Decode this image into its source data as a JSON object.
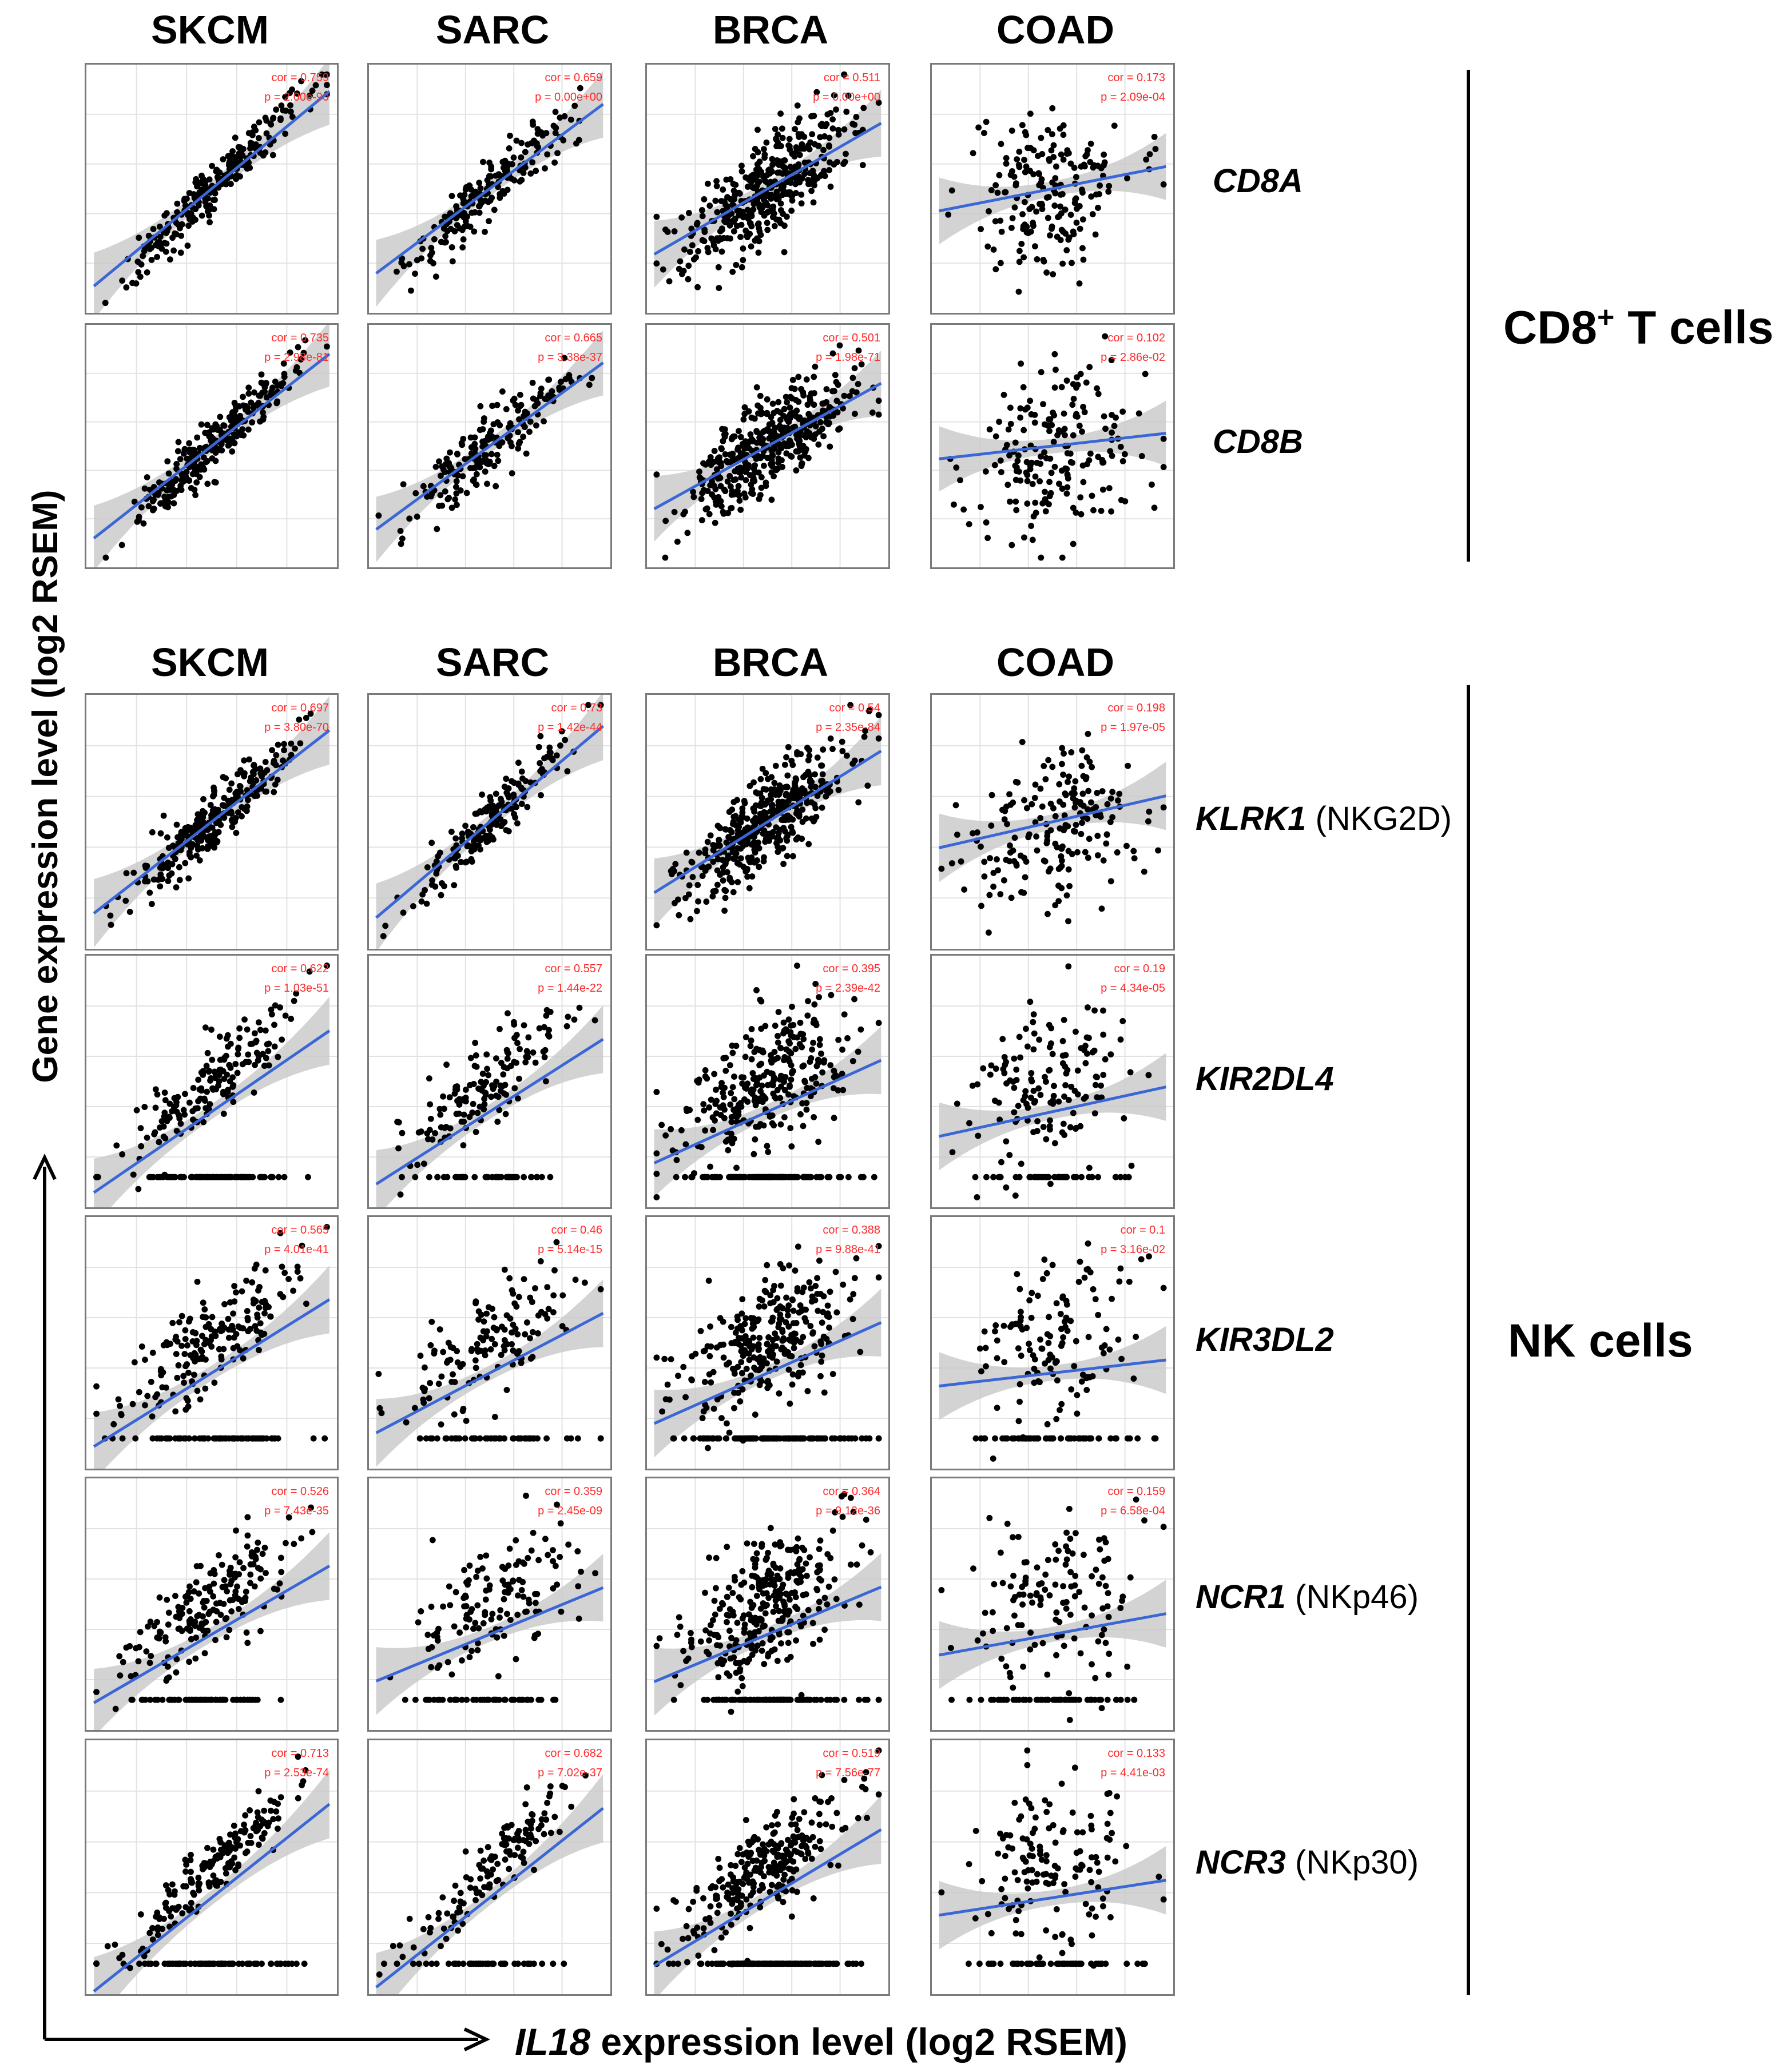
{
  "cancer_types": [
    "SKCM",
    "SARC",
    "BRCA",
    "COAD"
  ],
  "x_axis_label": {
    "gene": "IL18",
    "rest": " expression level (log2 RSEM)"
  },
  "y_axis_label": "Gene expression level (log2 RSEM)",
  "groups": [
    {
      "label_main": "CD8",
      "label_sup": "+",
      "label_rest": " T cells"
    },
    {
      "label": "NK cells"
    }
  ],
  "genes": [
    {
      "symbol": "CD8A",
      "alias": ""
    },
    {
      "symbol": "CD8B",
      "alias": ""
    },
    {
      "symbol": "KLRK1",
      "alias": " (NKG2D)"
    },
    {
      "symbol": "KIR2DL4",
      "alias": ""
    },
    {
      "symbol": "KIR3DL2",
      "alias": ""
    },
    {
      "symbol": "NCR1",
      "alias": " (NKp46)"
    },
    {
      "symbol": "NCR3",
      "alias": " (NKp30)"
    }
  ],
  "colors": {
    "points": "#000000",
    "fit_line": "#3a66d6",
    "ci_band": "#c8c8c8",
    "annotation": "#ff2a2a",
    "panel_border": "#7a7a7a",
    "grid": "#e2e2e2"
  },
  "chart_data": {
    "type": "scatter",
    "fit": "loess with confidence band",
    "correlations": [
      {
        "gene": "CD8A",
        "panels": [
          {
            "cancer": "SKCM",
            "cor": "cor = 0.759",
            "p": "p = 2.00e-90"
          },
          {
            "cancer": "SARC",
            "cor": "cor = 0.659",
            "p": "p = 0.00e+00"
          },
          {
            "cancer": "BRCA",
            "cor": "cor = 0.511",
            "p": "p = 0.00e+00"
          },
          {
            "cancer": "COAD",
            "cor": "cor = 0.173",
            "p": "p = 2.09e-04"
          }
        ]
      },
      {
        "gene": "CD8B",
        "panels": [
          {
            "cancer": "SKCM",
            "cor": "cor = 0.735",
            "p": "p = 2.98e-81"
          },
          {
            "cancer": "SARC",
            "cor": "cor = 0.665",
            "p": "p = 3.38e-37"
          },
          {
            "cancer": "BRCA",
            "cor": "cor = 0.501",
            "p": "p = 1.98e-71"
          },
          {
            "cancer": "COAD",
            "cor": "cor = 0.102",
            "p": "p = 2.86e-02"
          }
        ]
      },
      {
        "gene": "KLRK1",
        "panels": [
          {
            "cancer": "SKCM",
            "cor": "cor = 0.697",
            "p": "p = 3.80e-70"
          },
          {
            "cancer": "SARC",
            "cor": "cor = 0.73",
            "p": "p = 1.42e-44"
          },
          {
            "cancer": "BRCA",
            "cor": "cor = 0.54",
            "p": "p = 2.35e-84"
          },
          {
            "cancer": "COAD",
            "cor": "cor = 0.198",
            "p": "p = 1.97e-05"
          }
        ]
      },
      {
        "gene": "KIR2DL4",
        "panels": [
          {
            "cancer": "SKCM",
            "cor": "cor = 0.622",
            "p": "p = 1.03e-51"
          },
          {
            "cancer": "SARC",
            "cor": "cor = 0.557",
            "p": "p = 1.44e-22"
          },
          {
            "cancer": "BRCA",
            "cor": "cor = 0.395",
            "p": "p = 2.39e-42"
          },
          {
            "cancer": "COAD",
            "cor": "cor = 0.19",
            "p": "p = 4.34e-05"
          }
        ]
      },
      {
        "gene": "KIR3DL2",
        "panels": [
          {
            "cancer": "SKCM",
            "cor": "cor = 0.565",
            "p": "p = 4.01e-41"
          },
          {
            "cancer": "SARC",
            "cor": "cor = 0.46",
            "p": "p = 5.14e-15"
          },
          {
            "cancer": "BRCA",
            "cor": "cor = 0.388",
            "p": "p = 9.88e-41"
          },
          {
            "cancer": "COAD",
            "cor": "cor = 0.1",
            "p": "p = 3.16e-02"
          }
        ]
      },
      {
        "gene": "NCR1",
        "panels": [
          {
            "cancer": "SKCM",
            "cor": "cor = 0.526",
            "p": "p = 7.43e-35"
          },
          {
            "cancer": "SARC",
            "cor": "cor = 0.359",
            "p": "p = 2.45e-09"
          },
          {
            "cancer": "BRCA",
            "cor": "cor = 0.364",
            "p": "p = 9.12e-36"
          },
          {
            "cancer": "COAD",
            "cor": "cor = 0.159",
            "p": "p = 6.58e-04"
          }
        ]
      },
      {
        "gene": "NCR3",
        "panels": [
          {
            "cancer": "SKCM",
            "cor": "cor = 0.713",
            "p": "p = 2.53e-74"
          },
          {
            "cancer": "SARC",
            "cor": "cor = 0.682",
            "p": "p = 7.02e-37"
          },
          {
            "cancer": "BRCA",
            "cor": "cor = 0.519",
            "p": "p = 7.56e-77"
          },
          {
            "cancer": "COAD",
            "cor": "cor = 0.133",
            "p": "p = 4.41e-03"
          }
        ]
      }
    ]
  }
}
